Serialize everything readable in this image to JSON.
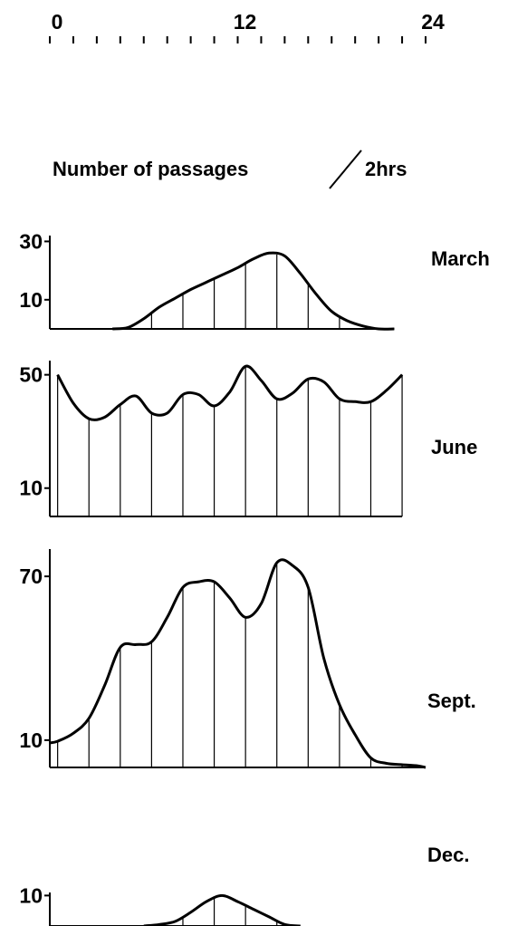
{
  "chart_data": {
    "type": "area",
    "title": "Number of passages ⁄ 2hrs",
    "title_parts": {
      "left": "Number of passages",
      "right": "2hrs"
    },
    "time_axis": {
      "tick_labels": [
        "0",
        "12",
        "24"
      ],
      "range": [
        0,
        24
      ],
      "minor_step": 1.5
    },
    "bar_separator_hours": [
      0.5,
      2.5,
      4.5,
      6.5,
      8.5,
      10.5,
      12.5,
      14.5,
      16.5,
      18.5,
      20.5,
      22.5
    ],
    "panels": [
      {
        "name": "March",
        "y_tick_labels": [
          "30",
          "10"
        ],
        "y_tick_values": [
          30,
          10
        ],
        "ylim": [
          0,
          32
        ],
        "x": [
          4,
          5,
          6,
          7,
          8,
          9,
          10,
          11,
          12,
          13,
          14,
          15,
          16,
          17,
          18,
          19,
          20,
          21,
          22
        ],
        "y": [
          0,
          0.5,
          3.5,
          7.5,
          10.5,
          13.5,
          16,
          18.5,
          21,
          24,
          26,
          25,
          19,
          12,
          6,
          2.8,
          1,
          0,
          0
        ]
      },
      {
        "name": "June",
        "y_tick_labels": [
          "50",
          "10"
        ],
        "y_tick_values": [
          50,
          10
        ],
        "ylim": [
          0,
          55
        ],
        "x": [
          0.5,
          1.5,
          2.5,
          3.5,
          4.5,
          5.5,
          6.5,
          7.5,
          8.5,
          9.5,
          10.5,
          11.5,
          12.5,
          13.5,
          14.5,
          15.5,
          16.5,
          17.5,
          18.5,
          19.5,
          20.5,
          21.5,
          22.5
        ],
        "y": [
          50,
          40,
          34.5,
          35,
          39.5,
          42.5,
          36.5,
          36.5,
          43,
          43,
          39,
          44,
          53,
          48,
          41.5,
          43.5,
          48.5,
          47.5,
          41.5,
          40.5,
          40.5,
          44.5,
          50
        ]
      },
      {
        "name": "Sept.",
        "y_tick_labels": [
          "70",
          "10"
        ],
        "y_tick_values": [
          70,
          10
        ],
        "ylim": [
          0,
          80
        ],
        "x": [
          0,
          0.5,
          1.5,
          2.5,
          3.5,
          4.5,
          5.5,
          6.5,
          7.5,
          8.5,
          9.5,
          10.5,
          11.5,
          12.5,
          13.5,
          14.5,
          15.5,
          16.5,
          17.5,
          18.5,
          19.5,
          20.5,
          21.5,
          22.5,
          23.5,
          24
        ],
        "y": [
          9,
          9.6,
          12.5,
          18,
          30,
          44,
          45,
          46,
          55,
          66,
          68,
          68,
          62,
          55,
          60,
          75,
          74,
          66,
          40,
          23,
          12,
          3.5,
          1.5,
          1,
          0.6,
          0
        ]
      },
      {
        "name": "Dec.",
        "y_tick_labels": [
          "10"
        ],
        "y_tick_values": [
          10
        ],
        "ylim": [
          0,
          11
        ],
        "x": [
          6,
          7,
          8,
          9,
          10,
          11,
          12,
          13,
          14,
          15,
          16
        ],
        "y": [
          0,
          0.5,
          1.5,
          4.5,
          8,
          10,
          8,
          5.5,
          3,
          0.5,
          0
        ]
      }
    ]
  }
}
